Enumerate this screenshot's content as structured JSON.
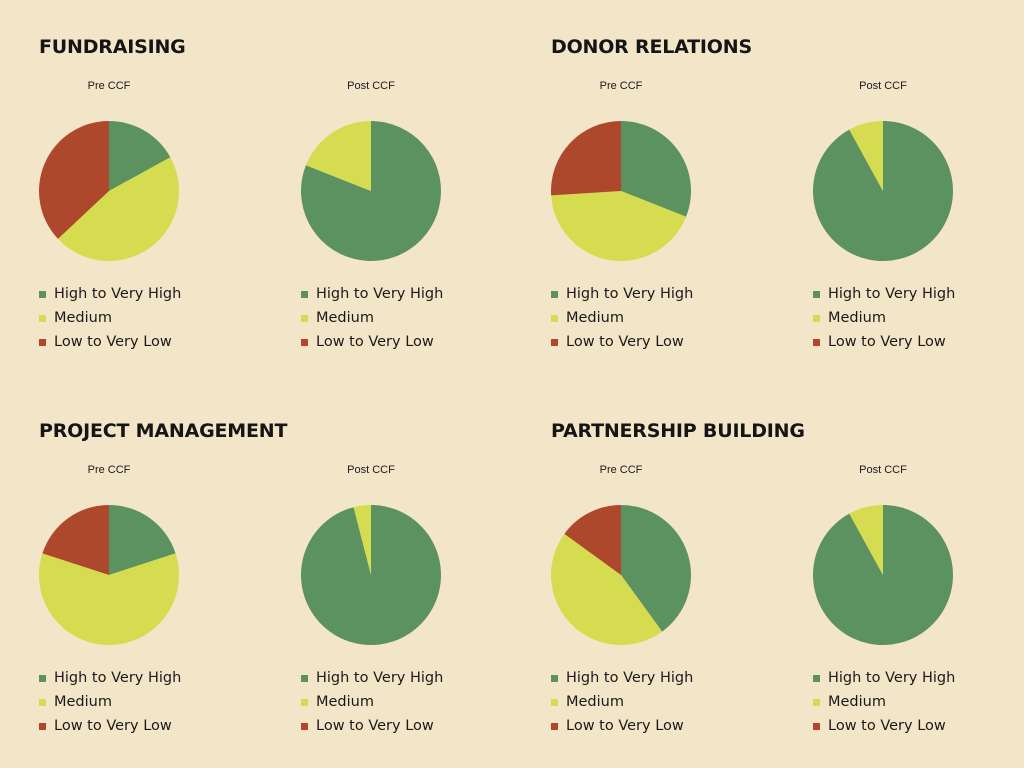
{
  "colors": {
    "high": "#5c9160",
    "medium": "#d6dc50",
    "low": "#ad482c",
    "background": "#f3e5c7"
  },
  "legend_labels": [
    "High to Very High",
    "Medium",
    "Low to Very Low"
  ],
  "chart_data": [
    {
      "type": "pie",
      "group": "FUNDRAISING",
      "title": "Pre CCF",
      "labels": [
        "High to Very High",
        "Medium",
        "Low to Very Low"
      ],
      "values": [
        17,
        46,
        37
      ]
    },
    {
      "type": "pie",
      "group": "FUNDRAISING",
      "title": "Post CCF",
      "labels": [
        "High to Very High",
        "Medium",
        "Low to Very Low"
      ],
      "values": [
        81,
        19,
        0
      ]
    },
    {
      "type": "pie",
      "group": "DONOR RELATIONS",
      "title": "Pre CCF",
      "labels": [
        "High to Very High",
        "Medium",
        "Low to Very Low"
      ],
      "values": [
        31,
        43,
        26
      ]
    },
    {
      "type": "pie",
      "group": "DONOR RELATIONS",
      "title": "Post CCF",
      "labels": [
        "High to Very High",
        "Medium",
        "Low to Very Low"
      ],
      "values": [
        92,
        8,
        0
      ]
    },
    {
      "type": "pie",
      "group": "PROJECT MANAGEMENT",
      "title": "Pre CCF",
      "labels": [
        "High to Very High",
        "Medium",
        "Low to Very Low"
      ],
      "values": [
        20,
        60,
        20
      ]
    },
    {
      "type": "pie",
      "group": "PROJECT MANAGEMENT",
      "title": "Post CCF",
      "labels": [
        "High to Very High",
        "Medium",
        "Low to Very Low"
      ],
      "values": [
        96,
        4,
        0
      ]
    },
    {
      "type": "pie",
      "group": "PARTNERSHIP BUILDING",
      "title": "Pre CCF",
      "labels": [
        "High to Very High",
        "Medium",
        "Low to Very Low"
      ],
      "values": [
        40,
        45,
        15
      ]
    },
    {
      "type": "pie",
      "group": "PARTNERSHIP BUILDING",
      "title": "Post CCF",
      "labels": [
        "High to Very High",
        "Medium",
        "Low to Very Low"
      ],
      "values": [
        92,
        8,
        0
      ]
    }
  ],
  "sections": [
    {
      "title": "FUNDRAISING",
      "charts": [
        0,
        1
      ]
    },
    {
      "title": "DONOR RELATIONS",
      "charts": [
        2,
        3
      ]
    },
    {
      "title": "PROJECT MANAGEMENT",
      "charts": [
        4,
        5
      ]
    },
    {
      "title": "PARTNERSHIP BUILDING",
      "charts": [
        6,
        7
      ]
    }
  ]
}
